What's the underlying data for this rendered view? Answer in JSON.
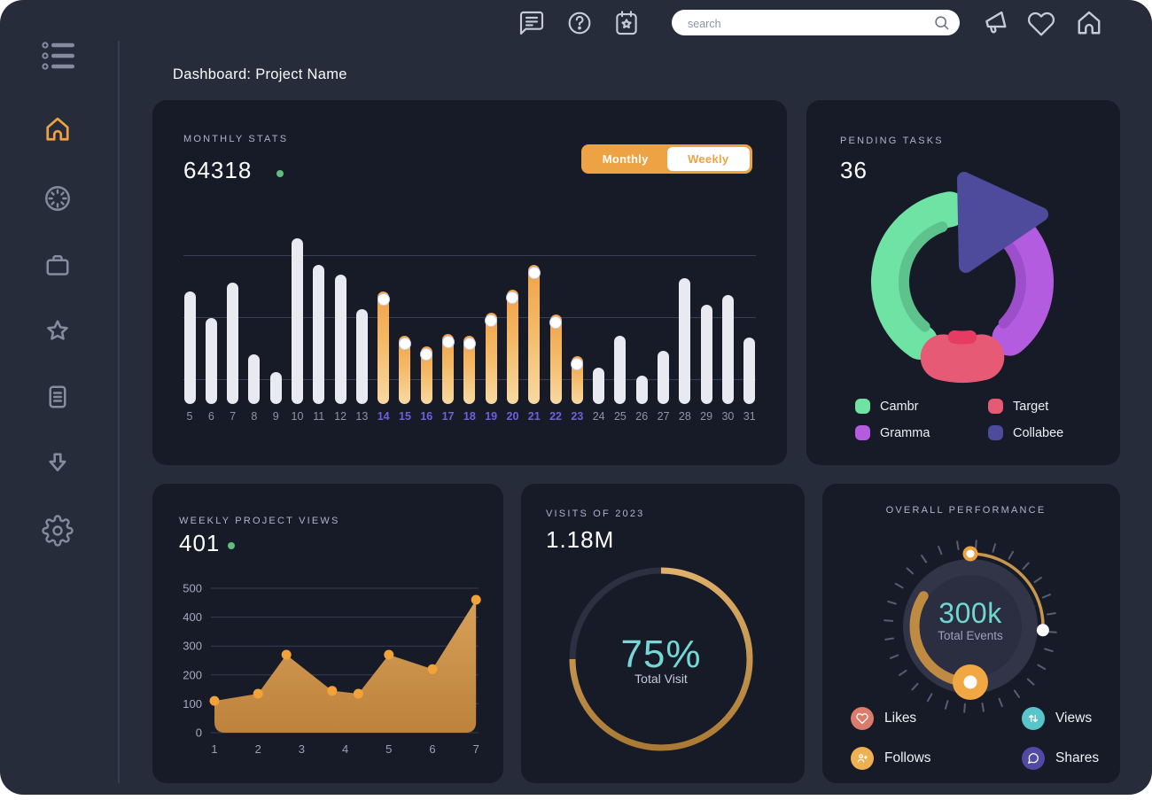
{
  "app": {
    "title": "Dashboard: Project Name",
    "background": "#272c3a",
    "card_background": "#161b27",
    "accent": "#eda243"
  },
  "topbar": {
    "search": {
      "placeholder": "search"
    },
    "icons": [
      "chat",
      "help",
      "calendar-star",
      "megaphone",
      "heart",
      "home"
    ]
  },
  "sidebar": {
    "icons": [
      "menu",
      "home",
      "activity",
      "briefcase",
      "star",
      "notes",
      "download",
      "settings"
    ],
    "active": "home"
  },
  "cards": {
    "monthly_stats": {
      "label": "MONTHLY STATS",
      "value": "64318",
      "trend_dot_color": "#5fbc7d",
      "toggle": {
        "options": [
          "Monthly",
          "Weekly"
        ],
        "selected": "Monthly"
      },
      "chart_data": {
        "type": "bar",
        "categories": [
          5,
          6,
          7,
          8,
          9,
          10,
          11,
          12,
          13,
          14,
          15,
          16,
          17,
          18,
          19,
          20,
          21,
          22,
          23,
          24,
          25,
          26,
          27,
          28,
          29,
          30,
          31
        ],
        "values": [
          68,
          52,
          73,
          30,
          19,
          100,
          84,
          78,
          57,
          68,
          41,
          35,
          42,
          41,
          55,
          69,
          84,
          54,
          29,
          22,
          41,
          17,
          32,
          76,
          60,
          66,
          40
        ],
        "highlight_range": [
          14,
          23
        ],
        "ymax": 100,
        "bar_color": "#e8e9f1",
        "highlight_gradient": [
          "#f1a147",
          "#f8d9a2"
        ],
        "label_color": "#8e94a9",
        "highlight_label_color": "#6e60dd",
        "grid_color": "#3a3f58"
      }
    },
    "pending_tasks": {
      "label": "PENDING TASKS",
      "value": "36",
      "chart_data": {
        "type": "donut",
        "segments": [
          {
            "name": "Cambr",
            "color": "#6fe3a4",
            "approx_percent": 40
          },
          {
            "name": "Gramma",
            "color": "#b45ce0",
            "approx_percent": 31
          },
          {
            "name": "Target",
            "color": "#e65a76",
            "approx_percent": 17
          },
          {
            "name": "Collabee",
            "color": "#4e4a9c",
            "approx_percent": 12
          }
        ],
        "inner_shadow_colors": {
          "Cambr": "#5ec28d",
          "Gramma": "#9d4ecb",
          "Target": "#e63c64"
        }
      },
      "legend": [
        {
          "label": "Cambr",
          "color": "#6fe3a4"
        },
        {
          "label": "Target",
          "color": "#e65a76"
        },
        {
          "label": "Gramma",
          "color": "#b45ce0"
        },
        {
          "label": "Collabee",
          "color": "#4e4a9c"
        }
      ]
    },
    "weekly_views": {
      "label": "WEEKLY PROJECT VIEWS",
      "value": "401",
      "trend_dot_color": "#5fbc7d",
      "chart_data": {
        "type": "area",
        "x": [
          1,
          2,
          2.65,
          3.7,
          4.3,
          5,
          6,
          7
        ],
        "y": [
          110,
          135,
          270,
          145,
          135,
          270,
          220,
          460
        ],
        "x_ticks": [
          1,
          2,
          3,
          4,
          5,
          6,
          7
        ],
        "y_ticks": [
          0,
          100,
          200,
          300,
          400,
          500
        ],
        "ylim": [
          0,
          500
        ],
        "fill_top": "#d7a058",
        "fill_bottom": "#bd823c",
        "dot_color": "#f1a238",
        "grid_color": "#383c52",
        "tick_color": "#a6abbf"
      }
    },
    "visits": {
      "label": "VISITS OF 2023",
      "value": "1.18M",
      "percent_text": "75%",
      "caption": "Total Visit",
      "chart_data": {
        "type": "progress-ring",
        "percent": 75,
        "color_start": "#e0b06a",
        "color_end": "#aa7a35",
        "track_color": "#2d3040",
        "text_color": "#74d9d6"
      }
    },
    "performance": {
      "label": "OVERALL PERFORMANCE",
      "value": "300k",
      "caption": "Total Events",
      "gauge": {
        "dial_color": "#323548",
        "dial_inner_color": "#2b2e40",
        "tick_color": "#575d73",
        "thin_arc_color": "#c9964d",
        "thick_arc_color": "#bf8b43",
        "knob_color": "#f1a743",
        "value_color": "#6fd8d2"
      },
      "legend": [
        {
          "label": "Likes",
          "color": "#da7b6b",
          "icon": "heart"
        },
        {
          "label": "Views",
          "color": "#58c5cb",
          "icon": "arrows-vertical"
        },
        {
          "label": "Follows",
          "color": "#edb052",
          "icon": "user-plus"
        },
        {
          "label": "Shares",
          "color": "#514aa3",
          "icon": "chat-bubble"
        }
      ]
    }
  }
}
